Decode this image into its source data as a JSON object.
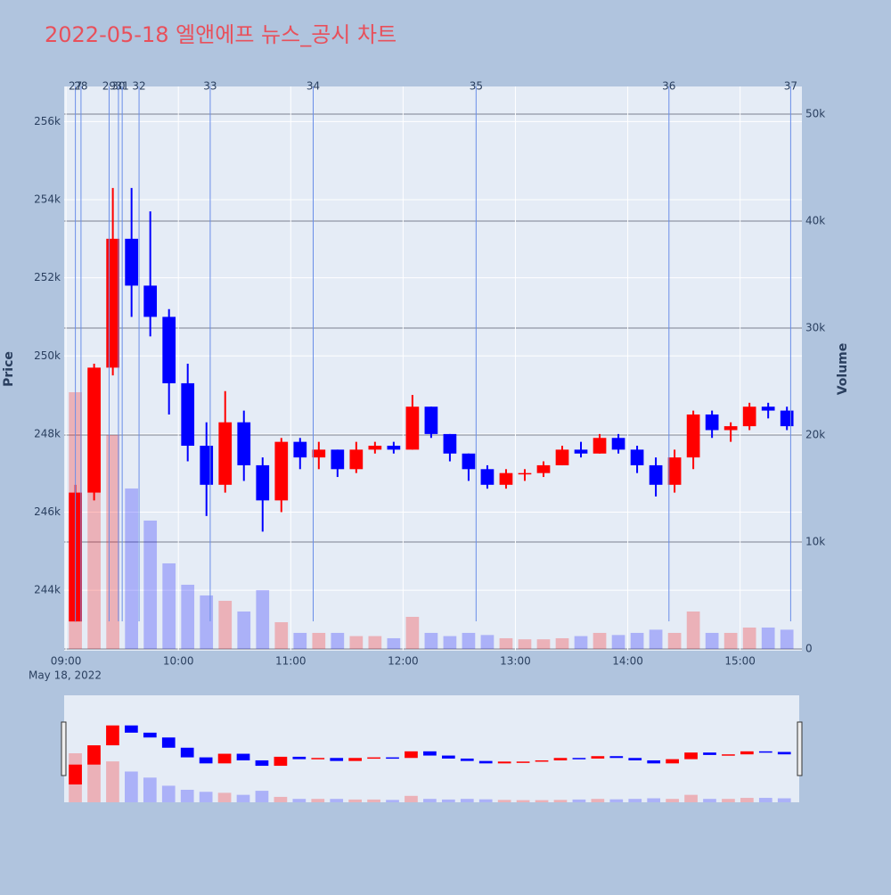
{
  "chart_data": {
    "type": "candlestick",
    "title": "2022-05-18 엘앤에프 뉴스_공시 차트",
    "x": [
      "09:00",
      "09:10",
      "09:20",
      "09:30",
      "09:40",
      "09:50",
      "10:00",
      "10:10",
      "10:20",
      "10:30",
      "10:40",
      "10:50",
      "11:00",
      "11:10",
      "11:20",
      "11:30",
      "11:40",
      "11:50",
      "12:00",
      "12:10",
      "12:20",
      "12:30",
      "12:40",
      "12:50",
      "13:00",
      "13:10",
      "13:20",
      "13:30",
      "13:40",
      "13:50",
      "14:00",
      "14:10",
      "14:20",
      "14:30",
      "14:40",
      "14:50",
      "15:00",
      "15:10",
      "15:20"
    ],
    "open": [
      243200,
      246500,
      249700,
      253000,
      251800,
      251000,
      249300,
      247700,
      246700,
      248300,
      247200,
      246300,
      247800,
      247400,
      247600,
      247100,
      247600,
      247700,
      247600,
      248700,
      248000,
      247500,
      247100,
      246700,
      247000,
      247000,
      247200,
      247600,
      247500,
      247900,
      247600,
      247200,
      246700,
      247400,
      248500,
      248100,
      248200,
      248700,
      248600
    ],
    "high": [
      246700,
      249800,
      254300,
      254300,
      253700,
      251200,
      249800,
      248300,
      249100,
      248600,
      247400,
      247900,
      247900,
      247800,
      247600,
      247800,
      247800,
      247800,
      249000,
      248700,
      248000,
      247500,
      247200,
      247100,
      247100,
      247300,
      247700,
      247800,
      248000,
      248000,
      247700,
      247400,
      247600,
      248600,
      248600,
      248300,
      248800,
      248800,
      248700
    ],
    "low": [
      243200,
      246300,
      249500,
      251000,
      250500,
      248500,
      247300,
      245900,
      246500,
      246800,
      245500,
      246000,
      247100,
      247100,
      246900,
      247000,
      247500,
      247500,
      247600,
      247900,
      247300,
      246800,
      246600,
      246600,
      246800,
      246900,
      247200,
      247400,
      247500,
      247500,
      247000,
      246400,
      246500,
      247100,
      247900,
      247800,
      248100,
      248400,
      248100
    ],
    "close": [
      246500,
      249700,
      253000,
      251800,
      251000,
      249300,
      247700,
      246700,
      248300,
      247200,
      246300,
      247800,
      247400,
      247600,
      247100,
      247600,
      247700,
      247600,
      248700,
      248000,
      247500,
      247100,
      246700,
      247000,
      247000,
      247200,
      247600,
      247500,
      247900,
      247600,
      247200,
      246700,
      247400,
      248500,
      248100,
      248200,
      248700,
      248600,
      248200
    ],
    "volume": [
      24000,
      26000,
      20000,
      15000,
      12000,
      8000,
      6000,
      5000,
      4500,
      3500,
      5500,
      2500,
      1500,
      1500,
      1500,
      1200,
      1200,
      1000,
      3000,
      1500,
      1200,
      1500,
      1300,
      1000,
      900,
      900,
      1000,
      1200,
      1500,
      1300,
      1500,
      1800,
      1500,
      3500,
      1500,
      1500,
      2000,
      2000,
      1800
    ],
    "colors": {
      "increasing": "#ff0000",
      "decreasing": "#0000ff"
    },
    "xlim": [
      "08:59",
      "15:33"
    ],
    "xticks": [
      "09:00",
      "10:00",
      "11:00",
      "12:00",
      "13:00",
      "14:00",
      "15:00"
    ],
    "date_label": "May 18, 2022",
    "ylim": [
      242450,
      256900
    ],
    "yticks": [
      {
        "value": 244000,
        "label": "244k"
      },
      {
        "value": 246000,
        "label": "246k"
      },
      {
        "value": 248000,
        "label": "248k"
      },
      {
        "value": 250000,
        "label": "250k"
      },
      {
        "value": 252000,
        "label": "252k"
      },
      {
        "value": 254000,
        "label": "254k"
      },
      {
        "value": 256000,
        "label": "256k"
      }
    ],
    "y2lim": [
      -170,
      52580
    ],
    "y2ticks": [
      0,
      {
        "value": 10000,
        "label": "10k"
      },
      {
        "value": 20000,
        "label": "20k"
      },
      {
        "value": 30000,
        "label": "30k"
      },
      {
        "value": 40000,
        "label": "40k"
      },
      {
        "value": 50000,
        "label": "50k"
      }
    ],
    "y_label": "Price",
    "y2_label": "Volume",
    "markers": {
      "x": [
        "09:05",
        "09:08",
        "09:23",
        "09:28",
        "09:30",
        "09:39",
        "10:17",
        "11:12",
        "12:39",
        "14:22",
        "15:27"
      ],
      "labels": [
        "27",
        "28",
        "29",
        "30",
        "31",
        "32",
        "33",
        "34",
        "35",
        "36",
        "37"
      ]
    }
  }
}
